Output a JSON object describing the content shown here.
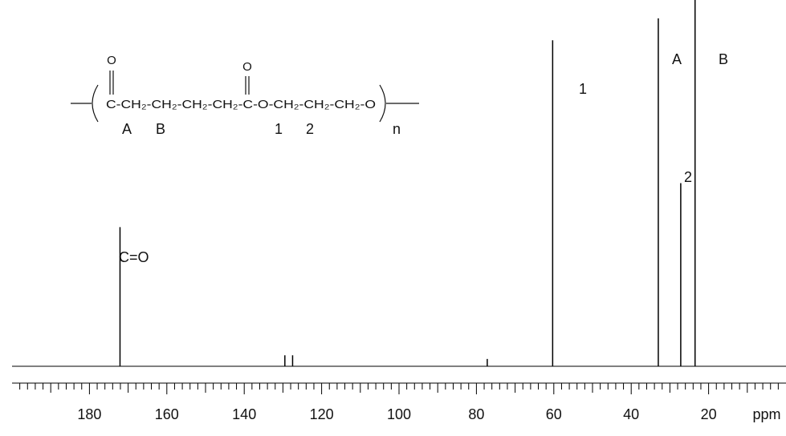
{
  "chart_data": {
    "type": "spectrum",
    "x": [
      172.1,
      129.5,
      127.5,
      77.2,
      60.3,
      33.0,
      27.2,
      23.5
    ],
    "values": [
      38,
      3,
      3,
      2,
      89,
      95,
      50,
      100
    ],
    "color": "#000000",
    "xlim": [
      200,
      0
    ],
    "ylim": [
      0,
      100
    ],
    "xticks": [
      180,
      160,
      140,
      120,
      100,
      80,
      60,
      40,
      20
    ],
    "xlabel": "ppm",
    "peak_labels": [
      "C=O",
      "1",
      "A",
      "2",
      "B"
    ],
    "structure": {
      "chain": "C-CH₂-CH₂-CH₂-CH₂-C-O-CH₂-CH₂-CH₂-O",
      "carbonyl_o": [
        "O",
        "O"
      ],
      "positions": [
        "A",
        "B",
        "1",
        "2"
      ],
      "repeat": "n"
    }
  }
}
